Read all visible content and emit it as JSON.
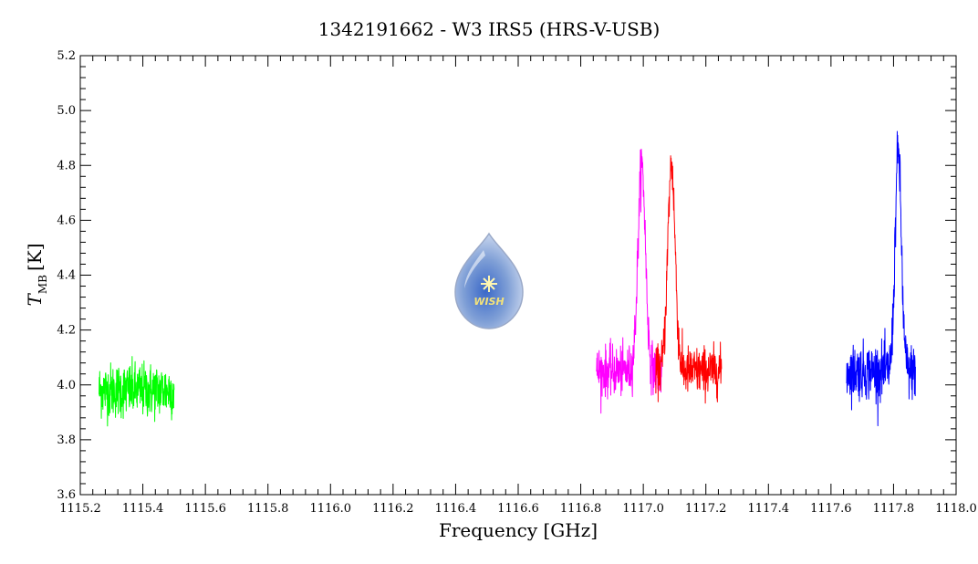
{
  "chart_data": {
    "type": "line",
    "title": "1342191662 - W3 IRS5 (HRS-V-USB)",
    "xlabel": "Frequency [GHz]",
    "ylabel": {
      "main": "T",
      "subscript": "MB",
      "unit": "[K]"
    },
    "xlim": [
      1115.2,
      1118.0
    ],
    "ylim": [
      3.6,
      5.2
    ],
    "x_ticks": [
      "1115.2",
      "1115.4",
      "1115.6",
      "1115.8",
      "1116.0",
      "1116.2",
      "1116.4",
      "1116.6",
      "1116.8",
      "1117.0",
      "1117.2",
      "1117.4",
      "1117.6",
      "1117.8",
      "1118.0"
    ],
    "y_ticks": [
      "3.6",
      "3.8",
      "4.0",
      "4.2",
      "4.4",
      "4.6",
      "4.8",
      "5.0",
      "5.2"
    ],
    "grid": false,
    "logo": {
      "text": "WISH",
      "name": "wish-logo"
    },
    "series": [
      {
        "color": "#00ff00",
        "x_range": [
          1115.26,
          1115.5
        ],
        "baseline": 3.98,
        "noise": 0.09,
        "peaks": [],
        "y_extent": [
          3.72,
          4.17
        ]
      },
      {
        "color": "#ff00ff",
        "x_range": [
          1116.85,
          1117.06
        ],
        "baseline": 4.05,
        "noise": 0.08,
        "peaks": [
          {
            "x": 1116.995,
            "height": 0.75,
            "width": 0.012
          }
        ],
        "y_extent": [
          3.78,
          4.95
        ]
      },
      {
        "color": "#ff0000",
        "x_range": [
          1117.04,
          1117.25
        ],
        "baseline": 4.05,
        "noise": 0.08,
        "peaks": [
          {
            "x": 1117.09,
            "height": 0.75,
            "width": 0.012
          }
        ],
        "y_extent": [
          3.83,
          4.97
        ]
      },
      {
        "color": "#0000ff",
        "x_range": [
          1117.65,
          1117.87
        ],
        "baseline": 4.05,
        "noise": 0.09,
        "peaks": [
          {
            "x": 1117.815,
            "height": 0.8,
            "width": 0.01
          }
        ],
        "y_extent": [
          3.79,
          4.99
        ]
      }
    ]
  }
}
